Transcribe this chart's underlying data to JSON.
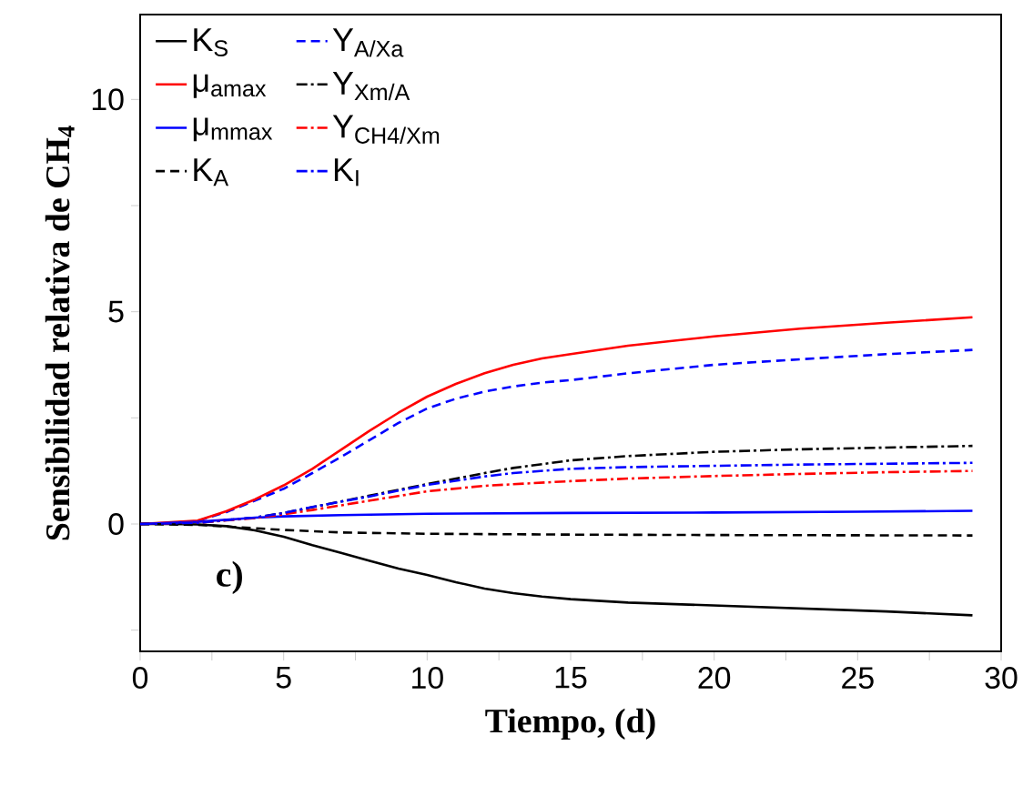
{
  "chart_data": {
    "type": "line",
    "xlabel": "Tiempo, (d)",
    "ylabel": "Sensibilidad relativa de CH$_{4}$",
    "annotations": [
      "c)"
    ],
    "xlim": [
      0,
      30
    ],
    "ylim": [
      -3,
      12
    ],
    "xticks": [
      0,
      {
        "value": 2.5,
        "label": null
      },
      5,
      {
        "value": 7.5,
        "label": null
      },
      10,
      {
        "value": 12.5,
        "label": null
      },
      15,
      {
        "value": 17.5,
        "label": null
      },
      20,
      {
        "value": 22.5,
        "label": null
      },
      25,
      {
        "value": 27.5,
        "label": null
      },
      30
    ],
    "yticks": [
      {
        "value": -2.5,
        "label": null
      },
      0,
      {
        "value": 2.5,
        "label": null
      },
      5,
      {
        "value": 7.5,
        "label": null
      },
      10
    ],
    "legend": "top left",
    "grid": false,
    "marker": "none",
    "series": [
      {
        "name": "K$_{S}$",
        "color": "#000000",
        "line_style": "solid",
        "x": [
          0,
          1,
          2,
          3,
          4,
          5,
          6,
          7,
          8,
          9,
          10,
          11,
          12,
          13,
          14,
          15,
          17,
          20,
          23,
          26,
          29
        ],
        "values": [
          0,
          0,
          -0.01,
          -0.05,
          -0.15,
          -0.3,
          -0.5,
          -0.68,
          -0.87,
          -1.05,
          -1.2,
          -1.37,
          -1.52,
          -1.63,
          -1.71,
          -1.77,
          -1.85,
          -1.92,
          -1.99,
          -2.06,
          -2.15
        ]
      },
      {
        "name": "Y$_{A/Xa}$",
        "color": "#0000ff",
        "line_style": "dashed",
        "x": [
          0,
          1,
          2,
          3,
          4,
          5,
          6,
          7,
          8,
          9,
          10,
          11,
          12,
          13,
          14,
          15,
          17,
          20,
          23,
          26,
          29
        ],
        "values": [
          0,
          0.01,
          0.07,
          0.28,
          0.55,
          0.83,
          1.2,
          1.58,
          1.98,
          2.38,
          2.72,
          2.95,
          3.12,
          3.24,
          3.33,
          3.39,
          3.55,
          3.75,
          3.88,
          4.0,
          4.1
        ]
      },
      {
        "name": "μ$_{amax}$",
        "color": "#ff0000",
        "line_style": "solid",
        "x": [
          0,
          1,
          2,
          3,
          4,
          5,
          6,
          7,
          8,
          9,
          10,
          11,
          12,
          13,
          14,
          15,
          17,
          20,
          23,
          26,
          29
        ],
        "values": [
          0,
          null,
          0.08,
          0.3,
          0.58,
          0.91,
          1.3,
          1.75,
          2.2,
          2.62,
          3.0,
          3.3,
          3.55,
          3.75,
          3.9,
          4.0,
          4.2,
          4.42,
          4.6,
          4.74,
          4.87
        ]
      },
      {
        "name": "Y$_{Xm/A}$",
        "color": "#000000",
        "line_style": "dashdot",
        "x": [
          0,
          2,
          4,
          5,
          10,
          12,
          13,
          15,
          17,
          20,
          23,
          26,
          29
        ],
        "values": [
          0,
          0.03,
          0.15,
          0.26,
          0.94,
          1.2,
          1.32,
          1.5,
          1.6,
          1.7,
          1.76,
          1.8,
          1.84
        ]
      },
      {
        "name": "μ$_{mmax}$",
        "color": "#0000ff",
        "line_style": "solid",
        "x": [
          0,
          2,
          4,
          5,
          7,
          10,
          15,
          20,
          25,
          29
        ],
        "values": [
          0,
          0.05,
          0.15,
          0.18,
          0.21,
          0.24,
          0.26,
          0.27,
          0.29,
          0.31
        ]
      },
      {
        "name": "Y$_{CH4/Xm}$",
        "color": "#ff0000",
        "line_style": "dashdot",
        "x": [
          0,
          2,
          4,
          5,
          6,
          8,
          10,
          12,
          15,
          17,
          20,
          23,
          26,
          29
        ],
        "values": [
          0,
          0.03,
          0.14,
          0.23,
          0.33,
          0.55,
          0.77,
          0.9,
          1.01,
          1.07,
          1.13,
          1.18,
          1.22,
          1.25
        ]
      },
      {
        "name": "K$_{A}$",
        "color": "#000000",
        "line_style": "dashed",
        "x": [
          0,
          2,
          4,
          5,
          7,
          10,
          15,
          20,
          29
        ],
        "values": [
          0,
          -0.02,
          -0.1,
          -0.14,
          -0.2,
          -0.23,
          -0.25,
          -0.26,
          -0.27
        ]
      },
      {
        "name": "K$_{I}$",
        "color": "#0000ff",
        "line_style": "dashdot",
        "x": [
          0,
          2,
          4,
          5,
          6,
          8,
          10,
          12,
          13,
          15,
          17,
          20,
          23,
          26,
          29
        ],
        "values": [
          0,
          0.03,
          0.15,
          0.26,
          0.4,
          0.65,
          0.92,
          1.12,
          1.2,
          1.3,
          1.34,
          1.37,
          1.4,
          1.42,
          1.44
        ]
      }
    ]
  }
}
